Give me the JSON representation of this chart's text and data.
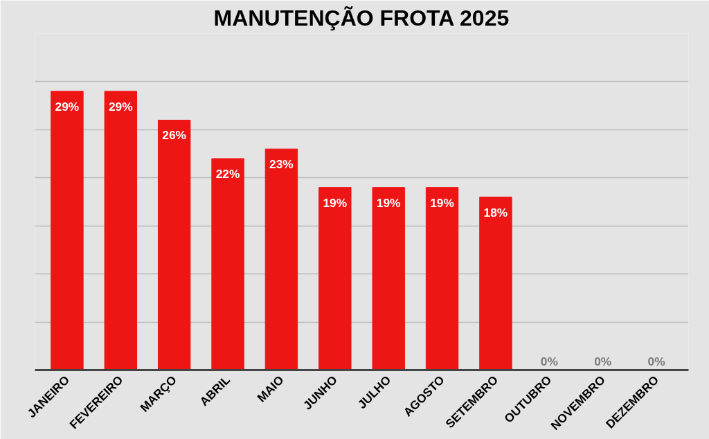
{
  "chart_data": {
    "type": "bar",
    "title": "MANUTENÇÃO FROTA 2025",
    "categories": [
      "JANEIRO",
      "FEVEREIRO",
      "MARÇO",
      "ABRIL",
      "MAIO",
      "JUNHO",
      "JULHO",
      "AGOSTO",
      "SETEMBRO",
      "OUTUBRO",
      "NOVEMBRO",
      "DEZEMBRO"
    ],
    "values": [
      29,
      29,
      26,
      22,
      23,
      19,
      19,
      19,
      18,
      0,
      0,
      0
    ],
    "color": "#ee1515",
    "value_labels": [
      "29%",
      "29%",
      "26%",
      "22%",
      "23%",
      "19%",
      "19%",
      "19%",
      "18%",
      "0%",
      "0%",
      "0%"
    ],
    "ylim": [
      0,
      35
    ],
    "yticks": [
      {
        "value": 0,
        "label": null
      },
      {
        "value": 5,
        "label": null
      },
      {
        "value": 10,
        "label": null
      },
      {
        "value": 15,
        "label": null
      },
      {
        "value": 20,
        "label": null
      },
      {
        "value": 25,
        "label": null
      },
      {
        "value": 30,
        "label": null
      },
      {
        "value": 35,
        "label": null
      }
    ],
    "grid": "y",
    "tick_labels": "x"
  }
}
